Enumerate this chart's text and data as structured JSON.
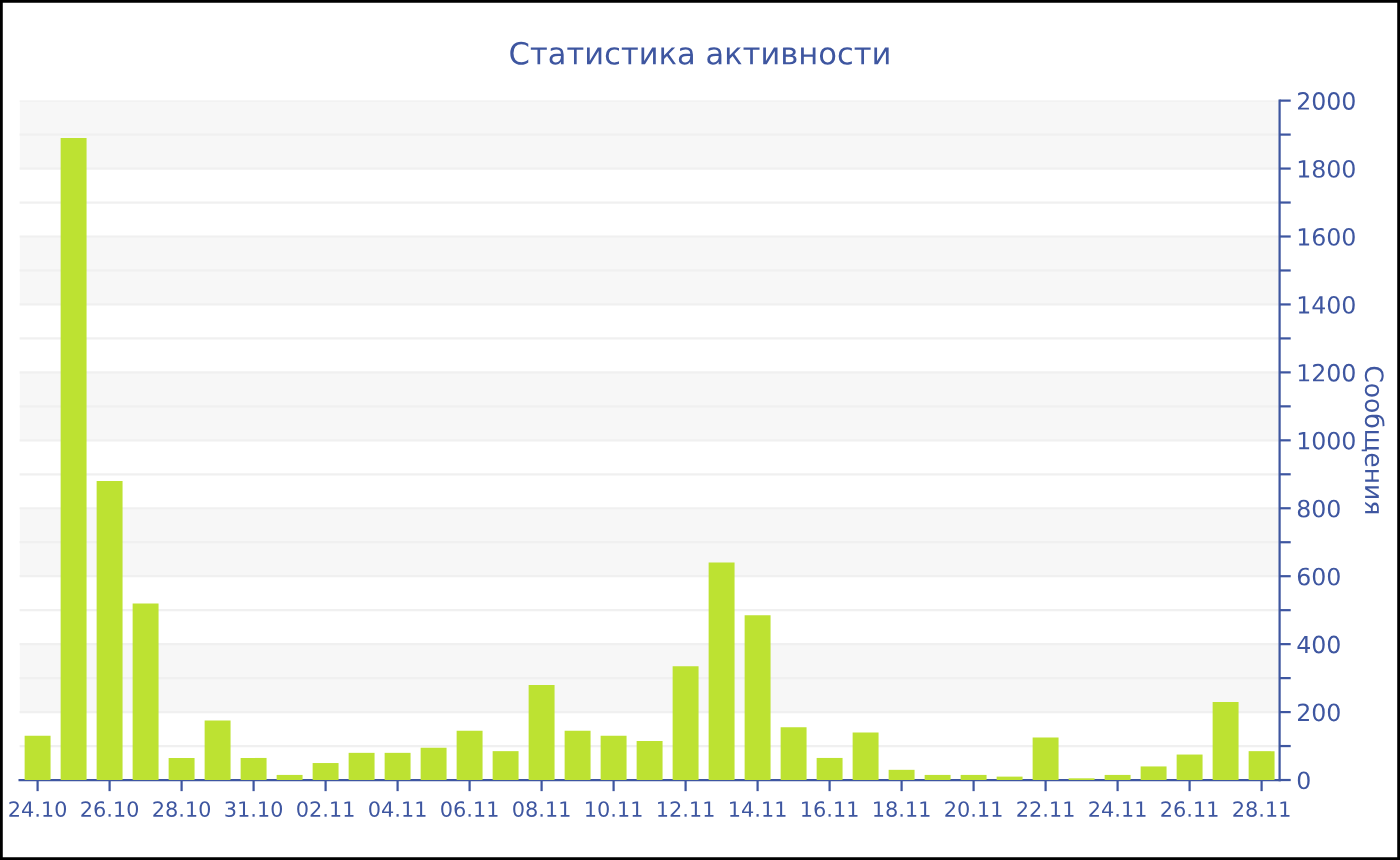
{
  "chart_data": {
    "type": "bar",
    "title": "Статистика активности",
    "ylabel": "Сообщения",
    "categories": [
      "24.10",
      null,
      "26.10",
      null,
      "28.10",
      null,
      "31.10",
      null,
      "02.11",
      null,
      "04.11",
      null,
      "06.11",
      null,
      "08.11",
      null,
      "10.11",
      null,
      "12.11",
      null,
      "14.11",
      null,
      "16.11",
      null,
      "18.11",
      null,
      "20.11",
      null,
      "22.11",
      null,
      "24.11",
      null,
      "26.11",
      null,
      "28.11"
    ],
    "values": [
      130,
      1890,
      880,
      520,
      65,
      175,
      65,
      15,
      50,
      80,
      80,
      95,
      145,
      85,
      280,
      145,
      130,
      115,
      335,
      640,
      485,
      155,
      65,
      140,
      30,
      15,
      15,
      10,
      125,
      5,
      15,
      40,
      75,
      230,
      85
    ],
    "color": "#bde232",
    "ylim": [
      0,
      2000
    ],
    "yticks": [
      0,
      {
        "value": 100,
        "label": null
      },
      200,
      {
        "value": 300,
        "label": null
      },
      400,
      {
        "value": 500,
        "label": null
      },
      600,
      {
        "value": 700,
        "label": null
      },
      800,
      {
        "value": 900,
        "label": null
      },
      1000,
      {
        "value": 1100,
        "label": null
      },
      1200,
      {
        "value": 1300,
        "label": null
      },
      1400,
      {
        "value": 1500,
        "label": null
      },
      1600,
      {
        "value": 1700,
        "label": null
      },
      1800,
      {
        "value": 1900,
        "label": null
      },
      2000
    ],
    "grid": "y",
    "legend": false
  }
}
